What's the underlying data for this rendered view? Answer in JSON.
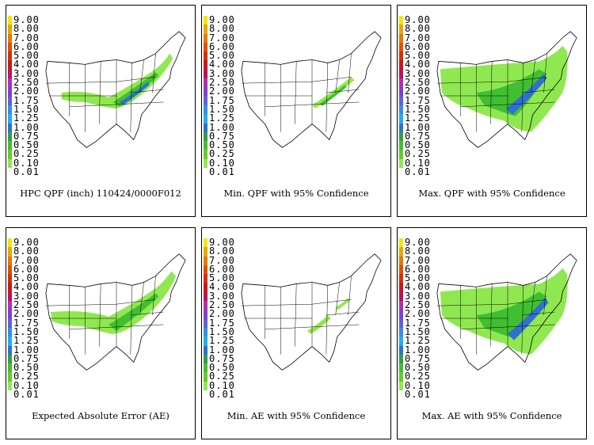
{
  "legend": {
    "levels": [
      "9.00",
      "8.00",
      "7.00",
      "6.00",
      "5.00",
      "4.00",
      "3.00",
      "2.50",
      "2.00",
      "1.75",
      "1.50",
      "1.25",
      "1.00",
      "0.75",
      "0.50",
      "0.25",
      "0.10",
      "0.01"
    ],
    "colors": [
      "#f5e600",
      "#e8a800",
      "#e87800",
      "#e05000",
      "#d83000",
      "#c81818",
      "#c01060",
      "#b030b0",
      "#8040d0",
      "#6060e0",
      "#3090e8",
      "#20b0e8",
      "#3070d0",
      "#30a040",
      "#40c030",
      "#60d020",
      "#90e850",
      "#ffffff"
    ]
  },
  "panels": [
    {
      "caption": "HPC QPF (inch) 110424/0000F012",
      "field": "hpc"
    },
    {
      "caption": "Min. QPF with 95% Confidence",
      "field": "min"
    },
    {
      "caption": "Max. QPF with 95% Confidence",
      "field": "max"
    },
    {
      "caption": "Expected Absolute Error (AE)",
      "field": "ae"
    },
    {
      "caption": "Min. AE with 95% Confidence",
      "field": "minae"
    },
    {
      "caption": "Max. AE with 95% Confidence",
      "field": "maxae"
    }
  ]
}
